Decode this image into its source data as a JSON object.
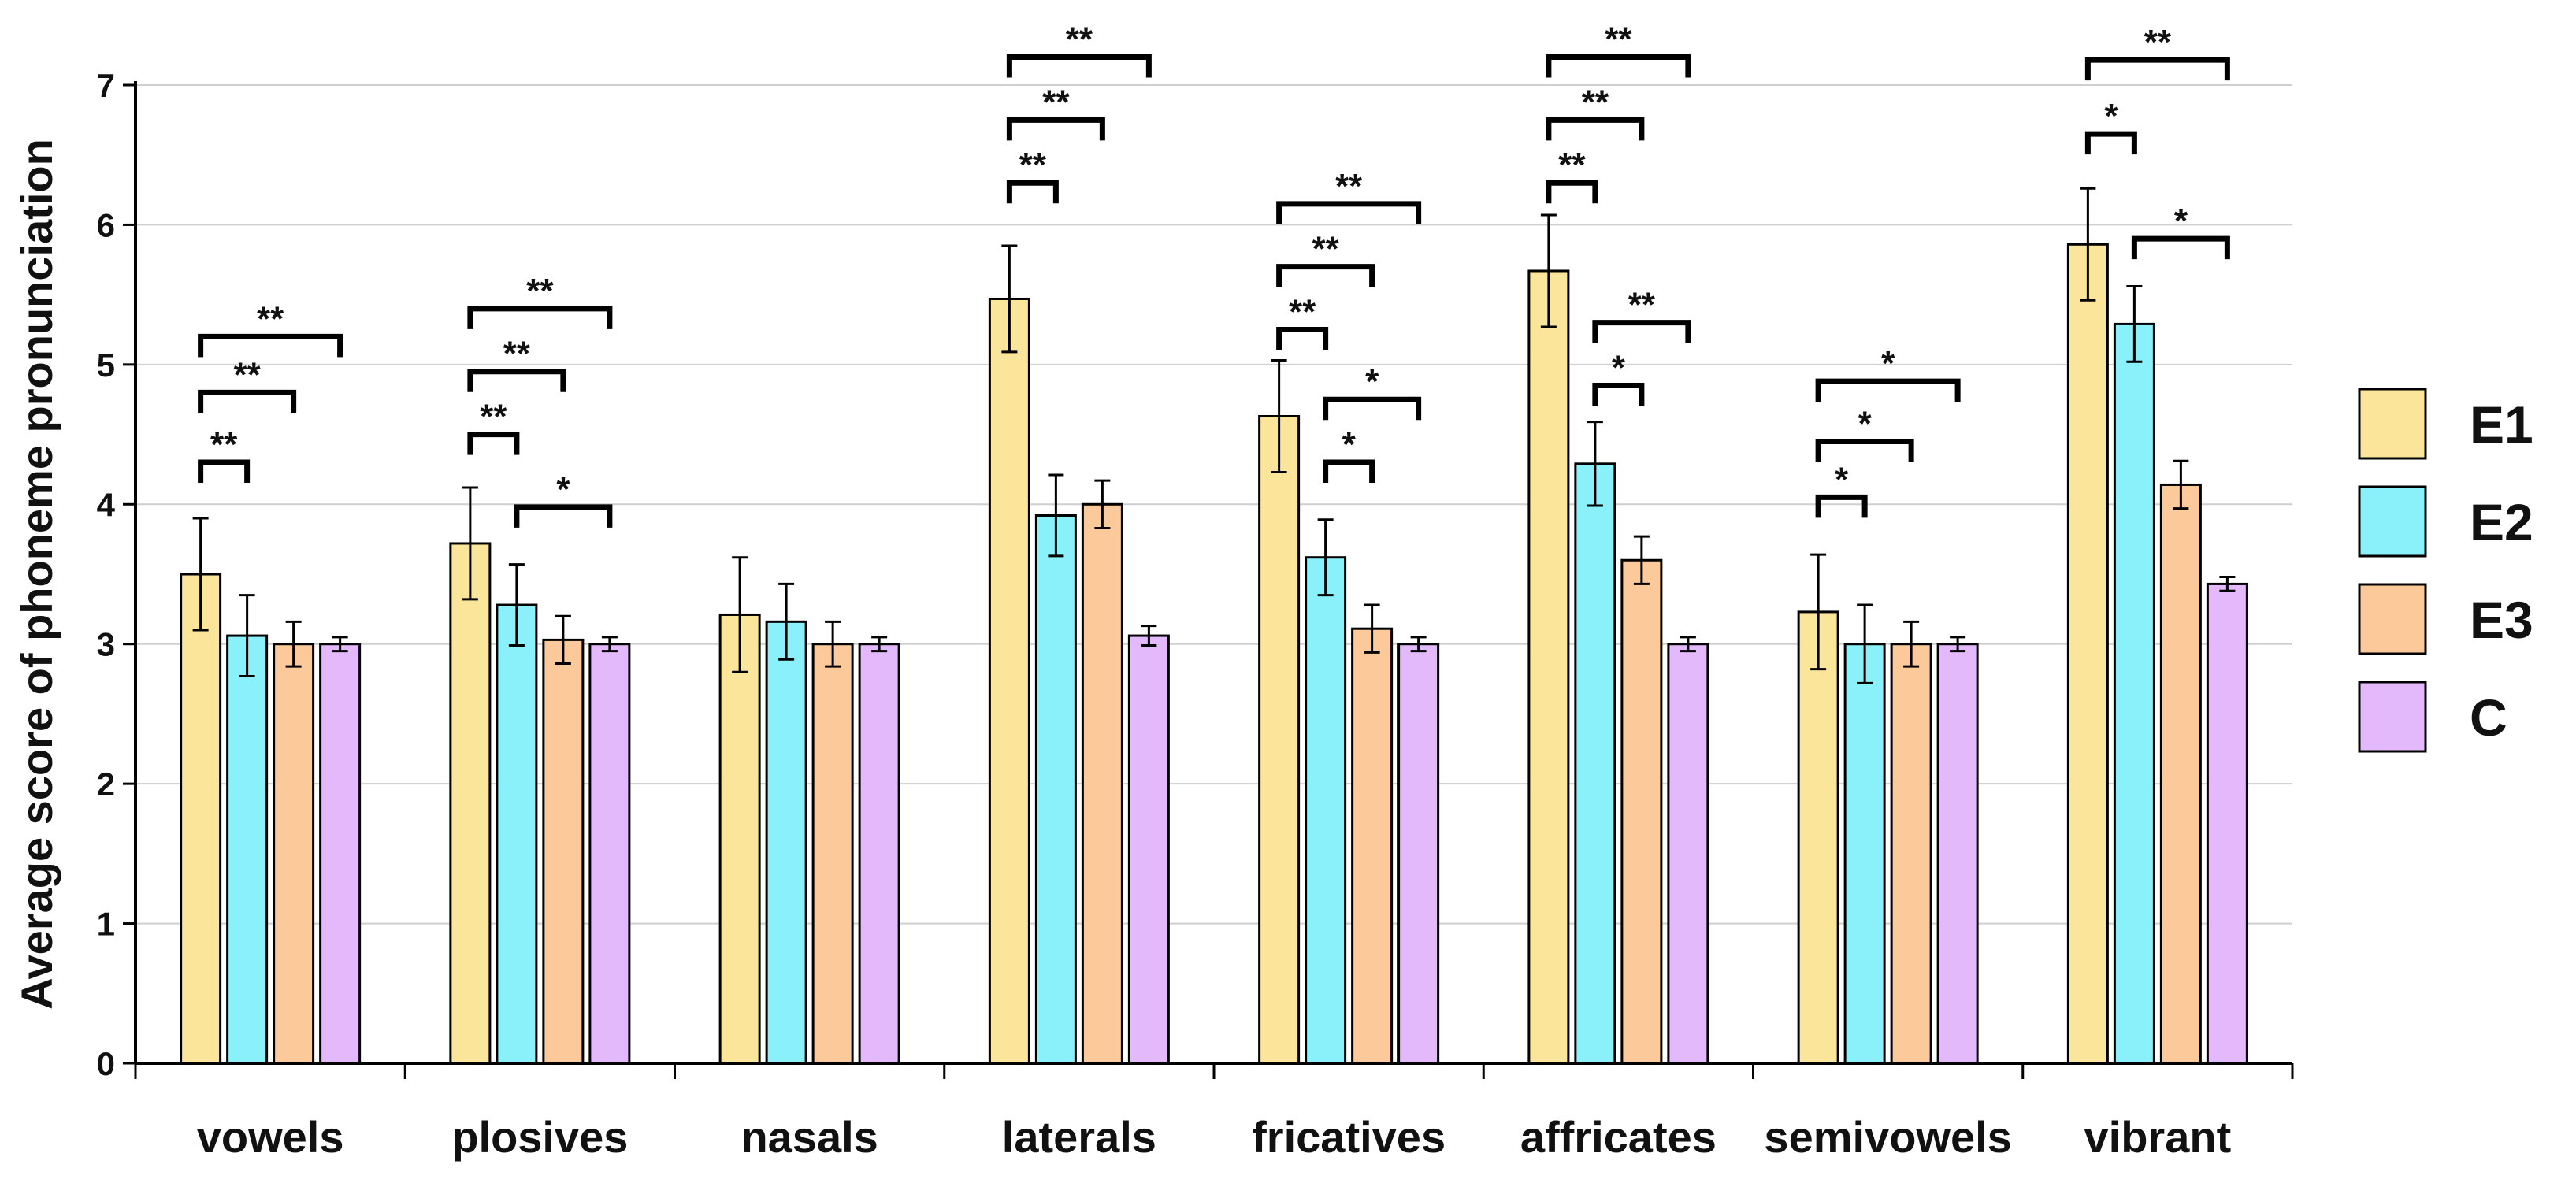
{
  "chart_data": {
    "type": "bar",
    "title": "",
    "xlabel": "",
    "ylabel": "Average score of phoneme pronunciation",
    "ylim": [
      0,
      7
    ],
    "yticks": [
      0,
      1,
      2,
      3,
      4,
      5,
      6,
      7
    ],
    "grid": true,
    "legend_position": "right",
    "categories": [
      "vowels",
      "plosives",
      "nasals",
      "laterals",
      "fricatives",
      "affricates",
      "semivowels",
      "vibrant"
    ],
    "series": [
      {
        "name": "E1",
        "color": "#FBE59A",
        "values": [
          3.5,
          3.72,
          3.21,
          5.47,
          4.63,
          5.67,
          3.23,
          5.86
        ],
        "errors": [
          0.4,
          0.4,
          0.41,
          0.38,
          0.4,
          0.4,
          0.41,
          0.4
        ]
      },
      {
        "name": "E2",
        "color": "#8AF0FA",
        "values": [
          3.06,
          3.28,
          3.16,
          3.92,
          3.62,
          4.29,
          3.0,
          5.29
        ],
        "errors": [
          0.29,
          0.29,
          0.27,
          0.29,
          0.27,
          0.3,
          0.28,
          0.27
        ]
      },
      {
        "name": "E3",
        "color": "#FCC99A",
        "values": [
          3.0,
          3.03,
          3.0,
          4.0,
          3.11,
          3.6,
          3.0,
          4.14
        ],
        "errors": [
          0.16,
          0.17,
          0.16,
          0.17,
          0.17,
          0.17,
          0.16,
          0.17
        ]
      },
      {
        "name": "C",
        "color": "#E3B9FC",
        "values": [
          3.0,
          3.0,
          3.0,
          3.06,
          3.0,
          3.0,
          3.0,
          3.43
        ],
        "errors": [
          0.05,
          0.05,
          0.05,
          0.07,
          0.05,
          0.05,
          0.05,
          0.05
        ]
      }
    ],
    "significance": [
      {
        "category": 0,
        "from": 0,
        "to": 1,
        "label": "**",
        "y": 4.3
      },
      {
        "category": 0,
        "from": 0,
        "to": 2,
        "label": "**",
        "y": 4.8
      },
      {
        "category": 0,
        "from": 0,
        "to": 3,
        "label": "**",
        "y": 5.2
      },
      {
        "category": 1,
        "from": 0,
        "to": 1,
        "label": "**",
        "y": 4.5
      },
      {
        "category": 1,
        "from": 0,
        "to": 2,
        "label": "**",
        "y": 4.95
      },
      {
        "category": 1,
        "from": 0,
        "to": 3,
        "label": "**",
        "y": 5.4
      },
      {
        "category": 1,
        "from": 1,
        "to": 3,
        "label": "*",
        "y": 3.98
      },
      {
        "category": 3,
        "from": 0,
        "to": 1,
        "label": "**",
        "y": 6.3
      },
      {
        "category": 3,
        "from": 0,
        "to": 2,
        "label": "**",
        "y": 6.75
      },
      {
        "category": 3,
        "from": 0,
        "to": 3,
        "label": "**",
        "y": 7.2
      },
      {
        "category": 4,
        "from": 0,
        "to": 1,
        "label": "**",
        "y": 5.25
      },
      {
        "category": 4,
        "from": 0,
        "to": 2,
        "label": "**",
        "y": 5.7
      },
      {
        "category": 4,
        "from": 0,
        "to": 3,
        "label": "**",
        "y": 6.15
      },
      {
        "category": 4,
        "from": 1,
        "to": 2,
        "label": "*",
        "y": 4.3
      },
      {
        "category": 4,
        "from": 1,
        "to": 3,
        "label": "*",
        "y": 4.75
      },
      {
        "category": 5,
        "from": 0,
        "to": 1,
        "label": "**",
        "y": 6.3
      },
      {
        "category": 5,
        "from": 0,
        "to": 2,
        "label": "**",
        "y": 6.75
      },
      {
        "category": 5,
        "from": 0,
        "to": 3,
        "label": "**",
        "y": 7.2
      },
      {
        "category": 5,
        "from": 1,
        "to": 2,
        "label": "*",
        "y": 4.85
      },
      {
        "category": 5,
        "from": 1,
        "to": 3,
        "label": "**",
        "y": 5.3
      },
      {
        "category": 6,
        "from": 0,
        "to": 1,
        "label": "*",
        "y": 4.05
      },
      {
        "category": 6,
        "from": 0,
        "to": 2,
        "label": "*",
        "y": 4.45
      },
      {
        "category": 6,
        "from": 0,
        "to": 3,
        "label": "*",
        "y": 4.88
      },
      {
        "category": 7,
        "from": 0,
        "to": 1,
        "label": "*",
        "y": 6.65
      },
      {
        "category": 7,
        "from": 0,
        "to": 3,
        "label": "**",
        "y": 7.18
      },
      {
        "category": 7,
        "from": 1,
        "to": 3,
        "label": "*",
        "y": 5.9
      }
    ]
  }
}
